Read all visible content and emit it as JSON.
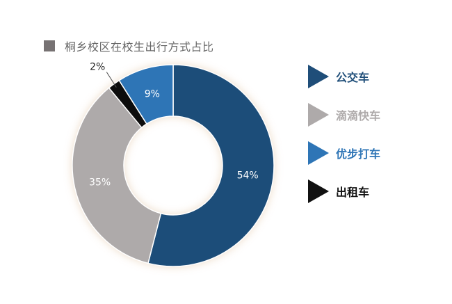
{
  "chart_data": {
    "type": "donut",
    "title": "桐乡校区在校生出行方式占比",
    "title_marker_color": "#777273",
    "legend_position": "right",
    "slices": [
      {
        "name": "公交车",
        "value": 54,
        "label": "54%",
        "color": "#1f4e79",
        "label_color": "#ffffff"
      },
      {
        "name": "滴滴快车",
        "value": 35,
        "label": "35%",
        "color": "#aeaaaa",
        "label_color": "#ffffff"
      },
      {
        "name": "出租车",
        "value": 2,
        "label": "2%",
        "color": "#111111",
        "label_color": "#222222"
      },
      {
        "name": "优步打车",
        "value": 9,
        "label": "9%",
        "color": "#2e75b6",
        "label_color": "#ffffff"
      }
    ],
    "legend": [
      {
        "label": "公交车",
        "color": "#1f4e79"
      },
      {
        "label": "滴滴快车",
        "color": "#aeaaaa"
      },
      {
        "label": "优步打车",
        "color": "#2e75b6"
      },
      {
        "label": "出租车",
        "color": "#111111"
      }
    ]
  }
}
